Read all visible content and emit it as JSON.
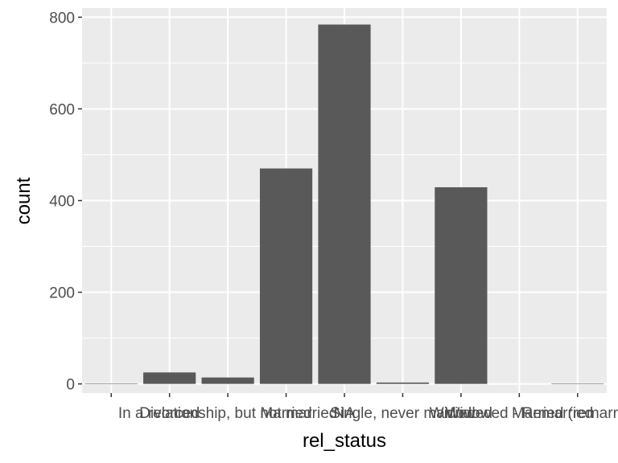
{
  "chart_data": {
    "type": "bar",
    "xlabel": "rel_status",
    "ylabel": "count",
    "ylim": [
      -20,
      820
    ],
    "yticks": [
      0,
      200,
      400,
      600,
      800
    ],
    "categories": [
      "",
      "Divorced",
      "In a relationship, but not married",
      "Married",
      "NA",
      "Single, never married",
      "Widowed",
      "Widowed - Remarried",
      "Married (remarried)"
    ],
    "values": [
      1,
      25,
      14,
      470,
      784,
      3,
      429,
      0,
      1
    ],
    "grid": true,
    "legend": "none",
    "colors": {
      "panel": "#ebebeb",
      "grid": "#ffffff",
      "bar": "#595959",
      "tick": "#333333",
      "text": "#4d4d4d"
    }
  }
}
